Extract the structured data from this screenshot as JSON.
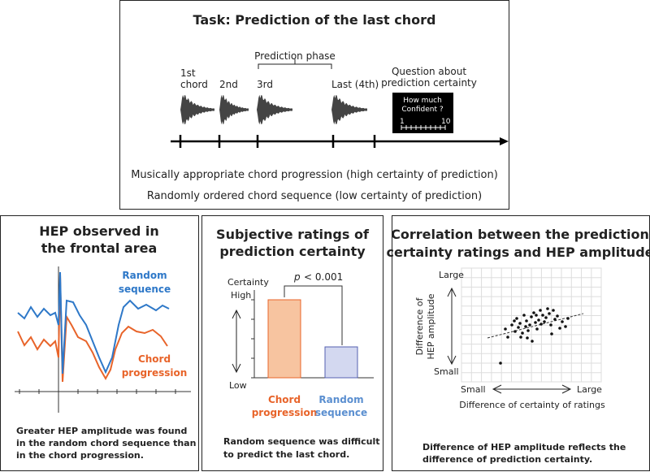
{
  "task": {
    "title": "Task: Prediction of the last chord",
    "phase_label": "Prediction phase",
    "chords": [
      [
        "1st",
        "chord"
      ],
      [
        "2nd"
      ],
      [
        "3rd"
      ],
      [
        "Last (4th)"
      ]
    ],
    "question": [
      "Question about",
      "prediction certainty"
    ],
    "rating_box": {
      "prompt": [
        "How much",
        "Confident ?"
      ],
      "min": "1",
      "max": "10"
    },
    "conditions": [
      "Musically appropriate chord progression (high certainty of prediction)",
      "Randomly ordered chord sequence (low certainty of prediction)"
    ]
  },
  "panels": [
    {
      "title": [
        "HEP observed in",
        "the frontal area"
      ],
      "labels": [
        [
          "Random",
          "sequence"
        ],
        [
          "Chord",
          "progression"
        ]
      ],
      "caption": [
        "Greater HEP amplitude was found",
        "in the random chord sequence than",
        "in the chord progression."
      ]
    },
    {
      "title": [
        "Subjective ratings of",
        "prediction certainty"
      ],
      "p_symbol": "p",
      "p_value": "< 0.001",
      "axis": [
        "Certainty",
        "High",
        "Low"
      ],
      "labels": [
        [
          "Chord",
          "progression"
        ],
        [
          "Random",
          "sequence"
        ]
      ],
      "caption": [
        "Random sequence was difficult",
        "to predict the last chord."
      ]
    },
    {
      "title": [
        "Correlation between the prediction",
        "certainty ratings and HEP amplitude"
      ],
      "y_axis": {
        "top": "Large",
        "label": [
          "Difference of",
          "HEP amplitude"
        ],
        "bottom": "Small"
      },
      "x_axis": {
        "left": "Small",
        "right": "Large",
        "label": "Difference of certainty of ratings"
      },
      "caption": [
        "Difference of HEP amplitude reflects the",
        "difference of prediction certainty."
      ]
    }
  ]
}
